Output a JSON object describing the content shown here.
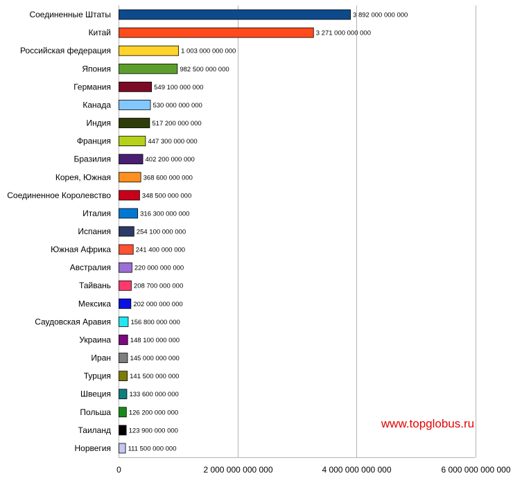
{
  "chart_data": {
    "type": "bar",
    "orientation": "horizontal",
    "title": "",
    "xlabel": "",
    "ylabel": "",
    "xlim": [
      0,
      6000000000000
    ],
    "grid": "vertical",
    "legend": "none",
    "categories": [
      "Соединенные Штаты",
      "Китай",
      "Российская федерация",
      "Япония",
      "Германия",
      "Канада",
      "Индия",
      "Франция",
      "Бразилия",
      "Корея, Южная",
      "Соединенное Королевство",
      "Италия",
      "Испания",
      "Южная Африка",
      "Австралия",
      "Тайвань",
      "Мексика",
      "Саудовская Аравия",
      "Украина",
      "Иран",
      "Турция",
      "Швеция",
      "Польша",
      "Таиланд",
      "Норвегия"
    ],
    "values": [
      3892000000000,
      3271000000000,
      1003000000000,
      982500000000,
      549100000000,
      530000000000,
      517200000000,
      447300000000,
      402200000000,
      368600000000,
      348500000000,
      316300000000,
      254100000000,
      241400000000,
      220000000000,
      208700000000,
      202000000000,
      156800000000,
      148100000000,
      145000000000,
      141500000000,
      133600000000,
      126200000000,
      123900000000,
      111500000000
    ],
    "value_labels": [
      "3 892 000 000 000",
      "3 271 000 000 000",
      "1 003 000 000 000",
      "982 500 000 000",
      "549 100 000 000",
      "530 000 000 000",
      "517 200 000 000",
      "447 300 000 000",
      "402 200 000 000",
      "368 600 000 000",
      "348 500 000 000",
      "316 300 000 000",
      "254 100 000 000",
      "241 400 000 000",
      "220 000 000 000",
      "208 700 000 000",
      "202 000 000 000",
      "156 800 000 000",
      "148 100 000 000",
      "145 000 000 000",
      "141 500 000 000",
      "133 600 000 000",
      "126 200 000 000",
      "123 900 000 000",
      "111 500 000 000"
    ],
    "colors": [
      "#0d4a8c",
      "#ff4a1c",
      "#ffd32a",
      "#5c9e2c",
      "#7b0c24",
      "#82c8ff",
      "#2e3d0a",
      "#b5d11a",
      "#4a1f73",
      "#ff9020",
      "#c8001a",
      "#0078d2",
      "#2b3a66",
      "#ff5230",
      "#9b6fd3",
      "#ff3a6b",
      "#0a12e0",
      "#22e6f2",
      "#7a0a7e",
      "#7e7e7e",
      "#7c7c08",
      "#0e7f7f",
      "#168c18",
      "#000000",
      "#c2c8ee"
    ],
    "x_tick_values": [
      0,
      2000000000000,
      4000000000000,
      6000000000000
    ],
    "x_tick_labels": [
      "0",
      "2 000 000 000 000",
      "4 000 000 000 000",
      "6 000 000 000 000"
    ]
  },
  "watermark": "www.topglobus.ru"
}
